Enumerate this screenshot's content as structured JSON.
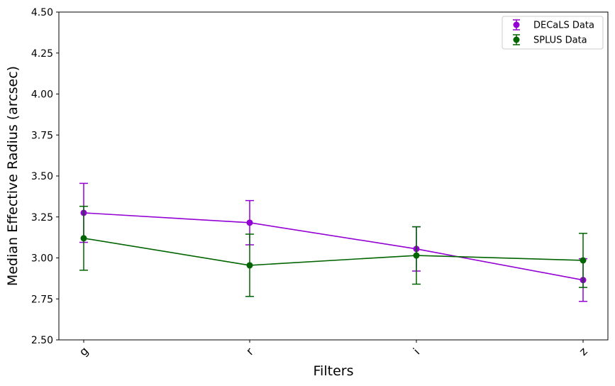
{
  "chart_data": {
    "type": "line",
    "xlabel": "Filters",
    "ylabel": "Median Effective Radius (arcsec)",
    "categories": [
      "g",
      "r",
      "i",
      "z"
    ],
    "ylim": [
      2.5,
      4.5
    ],
    "yticks": [
      "2.50",
      "2.75",
      "3.00",
      "3.25",
      "3.50",
      "3.75",
      "4.00",
      "4.25",
      "4.50"
    ],
    "grid": false,
    "legend_position": "top-right",
    "series": [
      {
        "name": "DECaLS Data",
        "color": "#9400d3",
        "values": [
          3.275,
          3.215,
          3.055,
          2.865
        ],
        "errors": [
          0.18,
          0.135,
          0.135,
          0.13
        ]
      },
      {
        "name": "SPLUS Data",
        "color": "#006400",
        "values": [
          3.12,
          2.955,
          3.015,
          2.985
        ],
        "errors": [
          0.195,
          0.19,
          0.175,
          0.165
        ]
      }
    ]
  }
}
